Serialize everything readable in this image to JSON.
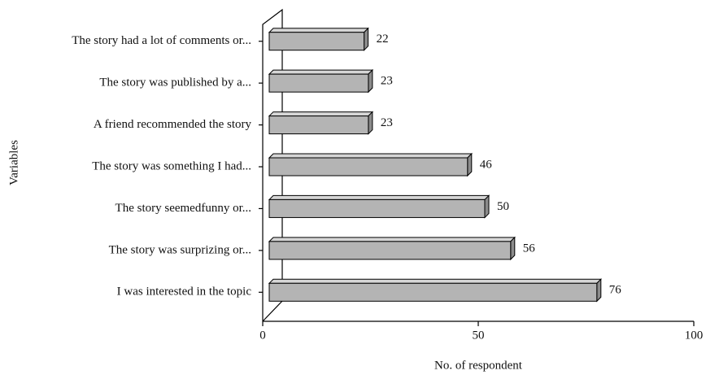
{
  "chart_data": {
    "type": "bar",
    "orientation": "horizontal",
    "y_label": "Variables",
    "x_label": "No. of respondent",
    "categories": [
      "The story had a lot of comments or...",
      "The story was published by a...",
      "A friend recommended the story",
      "The story was something I had...",
      "The story seemedfunny or...",
      "The story was surprizing or...",
      "I was interested in the topic"
    ],
    "values": [
      22,
      23,
      23,
      46,
      50,
      56,
      76
    ],
    "color": "#b4b4b4",
    "xlim": [
      0,
      100
    ],
    "xticks": [
      0,
      50,
      100
    ],
    "grid": false
  }
}
